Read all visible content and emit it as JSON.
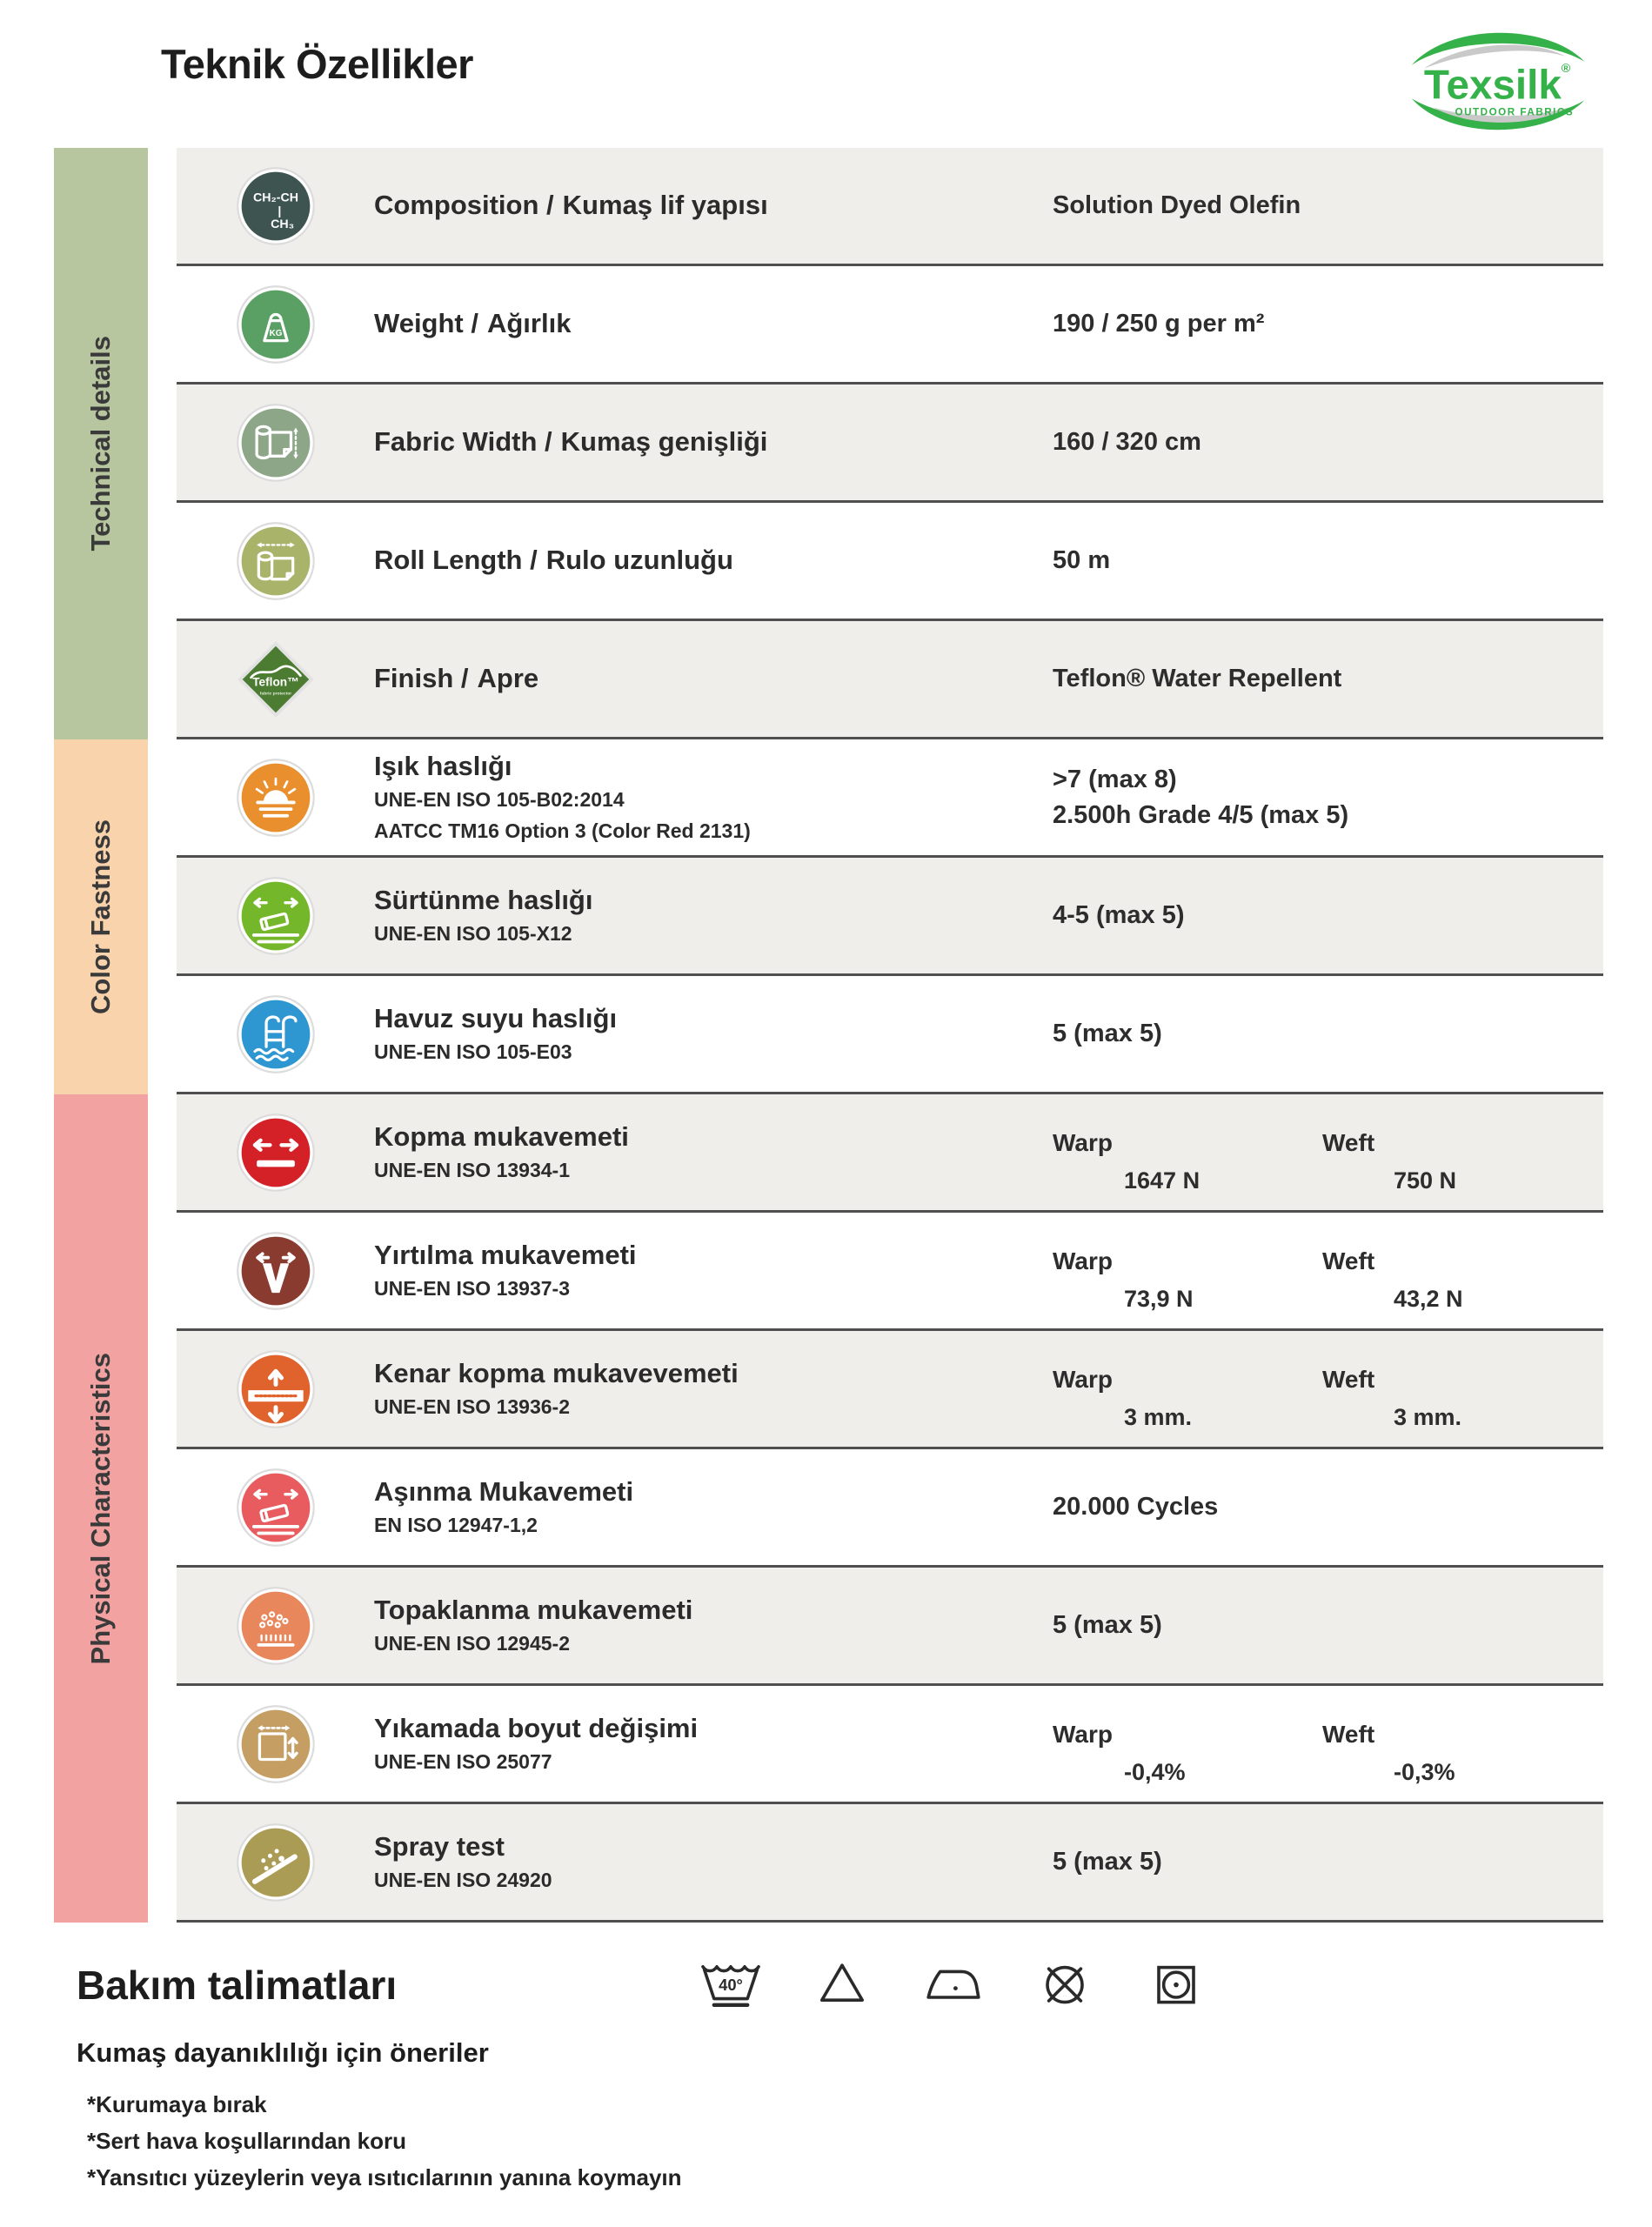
{
  "page": {
    "title": "Teknik Özellikler"
  },
  "logo": {
    "brand": "Texsilk",
    "registered": "®",
    "tagline": "OUTDOOR FABRICS",
    "green": "#35b14a",
    "gray": "#c9c9c9"
  },
  "sidebar": {
    "sections": [
      {
        "label": "Technical details",
        "color": "#b8c6a0"
      },
      {
        "label": "Color Fastness",
        "color": "#f8d3ac"
      },
      {
        "label": "Physical Characteristics",
        "color": "#f3a2a2"
      }
    ]
  },
  "table": {
    "warp_header": "Warp",
    "weft_header": "Weft",
    "rows": [
      {
        "icon": "composition-icon",
        "color": "#3d5451",
        "label": "Composition /",
        "label_tr": "Kumaş lif yapısı",
        "value": "Solution Dyed Olefin"
      },
      {
        "icon": "weight-icon",
        "color": "#5aa065",
        "label": "Weight /",
        "label_tr": "Ağırlık",
        "value": "190 / 250 g per m²"
      },
      {
        "icon": "fabric-width-icon",
        "color": "#8ca687",
        "label": "Fabric Width /",
        "label_tr": "Kumaş genişliği",
        "value": "160 / 320 cm"
      },
      {
        "icon": "roll-length-icon",
        "color": "#a9b36a",
        "label": "Roll Length /",
        "label_tr": "Rulo uzunluğu",
        "value": "50 m"
      },
      {
        "icon": "teflon-finish-icon",
        "color": "#4c7c31",
        "label": "Finish /",
        "label_tr": "Apre",
        "value": "Teflon® Water Repellent"
      },
      {
        "icon": "light-fastness-icon",
        "color": "#e98f2e",
        "label": "Işık haslığı",
        "subs": [
          "UNE-EN ISO 105-B02:2014",
          "AATCC TM16 Option 3 (Color Red 2131)"
        ],
        "values": [
          ">7 (max 8)",
          "2.500h Grade 4/5 (max 5)"
        ]
      },
      {
        "icon": "rubbing-fastness-icon",
        "color": "#75b72a",
        "label": "Sürtünme haslığı",
        "subs": [
          "UNE-EN ISO 105-X12"
        ],
        "value": "4-5 (max 5)"
      },
      {
        "icon": "pool-water-fastness-icon",
        "color": "#2e96d1",
        "label": "Havuz suyu haslığı",
        "subs": [
          "UNE-EN ISO 105-E03"
        ],
        "value": "5 (max 5)"
      },
      {
        "icon": "tensile-strength-icon",
        "color": "#d42127",
        "label": "Kopma mukavemeti",
        "subs": [
          "UNE-EN ISO 13934-1"
        ],
        "warp": "1647 N",
        "weft": "750 N"
      },
      {
        "icon": "tear-strength-icon",
        "color": "#8a3b30",
        "label": "Yırtılma mukavemeti",
        "subs": [
          "UNE-EN ISO 13937-3"
        ],
        "warp": "73,9 N",
        "weft": "43,2 N"
      },
      {
        "icon": "seam-slippage-icon",
        "color": "#e0622c",
        "label": "Kenar kopma mukavevemeti",
        "subs": [
          "UNE-EN ISO 13936-2"
        ],
        "warp": "3 mm.",
        "weft": "3 mm."
      },
      {
        "icon": "abrasion-resistance-icon",
        "color": "#e85c60",
        "label": "Aşınma Mukavemeti",
        "subs": [
          "EN ISO 12947-1,2"
        ],
        "value": "20.000 Cycles"
      },
      {
        "icon": "pilling-resistance-icon",
        "color": "#e8875c",
        "label": "Topaklanma mukavemeti",
        "subs": [
          "UNE-EN ISO 12945-2"
        ],
        "value": "5 (max 5)"
      },
      {
        "icon": "dimensional-change-icon",
        "color": "#c59e63",
        "label": "Yıkamada boyut değişimi",
        "subs": [
          "UNE-EN ISO 25077"
        ],
        "warp": "-0,4%",
        "weft": "-0,3%"
      },
      {
        "icon": "spray-test-icon",
        "color": "#ab9c55",
        "label": "Spray test",
        "subs": [
          "UNE-EN ISO 24920"
        ],
        "value": "5 (max 5)"
      }
    ]
  },
  "care": {
    "title": "Bakım talimatları",
    "subtitle": "Kumaş dayanıklılığı için öneriler",
    "wash_temp": "40°",
    "notes": [
      "*Kurumaya bırak",
      "*Sert hava koşullarından koru",
      "*Yansıtıcı yüzeylerin veya ısıtıcılarının yanına koymayın"
    ],
    "icons": [
      {
        "name": "wash-40-icon"
      },
      {
        "name": "bleach-triangle-icon"
      },
      {
        "name": "iron-one-dot-icon"
      },
      {
        "name": "do-not-dryclean-icon"
      },
      {
        "name": "tumble-dry-icon"
      }
    ]
  }
}
